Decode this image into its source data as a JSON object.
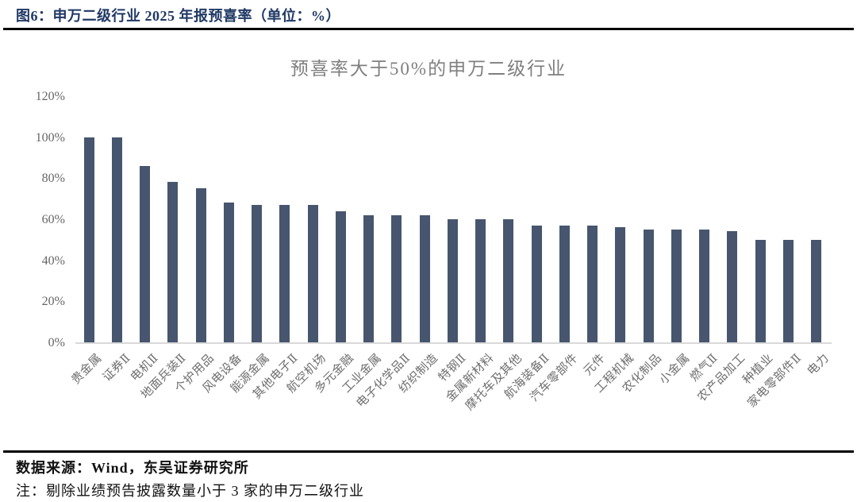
{
  "figure_header": {
    "title": "图6：申万二级行业 2025 年报预喜率（单位：%）"
  },
  "chart_data": {
    "type": "bar",
    "title": "预喜率大于50%的申万二级行业",
    "unit": "%",
    "categories": [
      "贵金属",
      "证券Ⅱ",
      "电机Ⅱ",
      "地面兵装Ⅱ",
      "个护用品",
      "风电设备",
      "能源金属",
      "其他电子Ⅱ",
      "航空机场",
      "多元金融",
      "工业金属",
      "电子化学品Ⅱ",
      "纺织制造",
      "特钢Ⅱ",
      "金属新材料",
      "摩托车及其他",
      "航海装备Ⅱ",
      "汽车零部件",
      "元件",
      "工程机械",
      "农化制品",
      "小金属",
      "燃气Ⅱ",
      "农产品加工",
      "种植业",
      "家电零部件Ⅱ",
      "电力"
    ],
    "values": [
      100,
      100,
      86,
      78,
      75,
      68,
      67,
      67,
      67,
      64,
      62,
      62,
      62,
      60,
      60,
      60,
      57,
      57,
      57,
      56,
      55,
      55,
      55,
      54,
      50,
      50,
      50
    ],
    "y_ticks": [
      0,
      20,
      40,
      60,
      80,
      100,
      120
    ],
    "y_tick_suffix": "%",
    "ylim": [
      0,
      120
    ],
    "xlabel": "",
    "ylabel": "",
    "grid": false,
    "legend": "none",
    "bar_color": "#47566E"
  },
  "footer": {
    "source": "数据来源：Wind，东吴证券研究所",
    "note": "注：剔除业绩预告披露数量小于 3 家的申万二级行业"
  },
  "colors": {
    "header_text": "#1F3864",
    "bar": "#47566E",
    "chart_title": "#7F7F7F",
    "y_axis_label": "#666666",
    "x_axis_label": "#6E6E6E",
    "axis_line": "#D9D9D9",
    "rule": "#000000"
  }
}
